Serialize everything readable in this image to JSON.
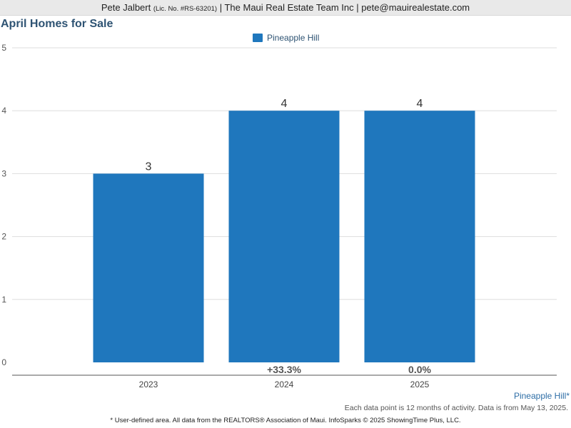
{
  "header": {
    "agent": "Pete Jalbert",
    "license": "(Lic. No. #RS-63201)",
    "rest": "| The Maui Real Estate Team Inc | pete@mauirealestate.com"
  },
  "chart_data": {
    "type": "bar",
    "title": "April Homes for Sale",
    "categories": [
      "2023",
      "2024",
      "2025"
    ],
    "series": [
      {
        "name": "Pineapple Hill",
        "values": [
          3,
          4,
          4
        ],
        "color": "#1f77bd"
      }
    ],
    "data_labels": [
      "3",
      "4",
      "4"
    ],
    "change_labels": [
      "",
      "+33.3%",
      "0.0%"
    ],
    "yticks": [
      "0",
      "1",
      "2",
      "3",
      "4",
      "5"
    ],
    "ylim": [
      0,
      5
    ],
    "grid": true,
    "legend": "top-center"
  },
  "footer": {
    "area": "Pineapple Hill*",
    "note": "Each data point is 12 months of activity. Data is from May 13, 2025.",
    "source": "* User-defined area. All data from the REALTORS® Association of Maui. InfoSparks © 2025 ShowingTime Plus, LLC."
  }
}
